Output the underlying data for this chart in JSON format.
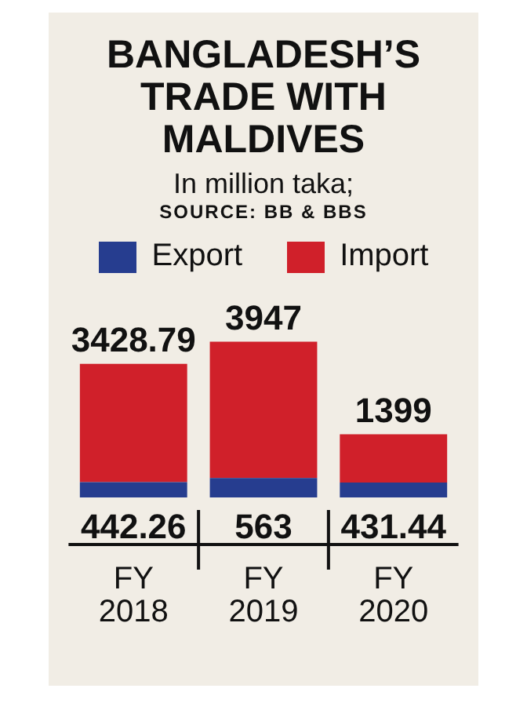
{
  "chart_data": {
    "type": "bar",
    "title": "BANGLADESH’S TRADE WITH MALDIVES",
    "subtitle": "In million taka;",
    "annotations": [
      "SOURCE: BB & BBS"
    ],
    "categories": [
      "FY 2018",
      "FY 2019",
      "FY 2020"
    ],
    "stacked": true,
    "data_labels": true,
    "legend": "top",
    "series": [
      {
        "name": "Export",
        "color": "#263d8f",
        "values": [
          442.26,
          563,
          431.44
        ]
      },
      {
        "name": "Import",
        "color": "#d0202a",
        "values": [
          3428.79,
          3947,
          1399
        ]
      }
    ]
  }
}
